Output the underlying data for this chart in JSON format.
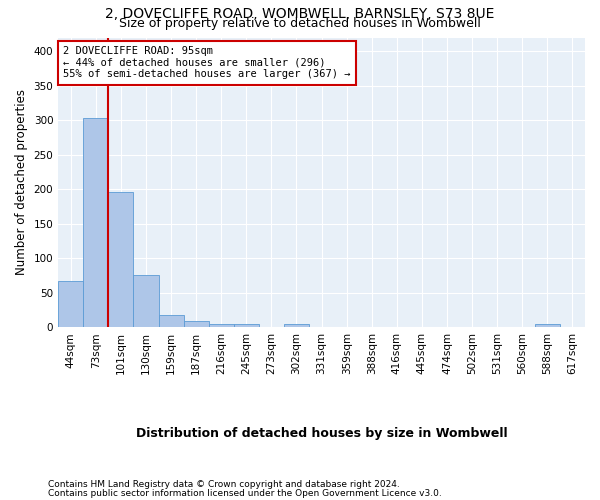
{
  "title": "2, DOVECLIFFE ROAD, WOMBWELL, BARNSLEY, S73 8UE",
  "subtitle": "Size of property relative to detached houses in Wombwell",
  "xlabel": "Distribution of detached houses by size in Wombwell",
  "ylabel": "Number of detached properties",
  "footer_line1": "Contains HM Land Registry data © Crown copyright and database right 2024.",
  "footer_line2": "Contains public sector information licensed under the Open Government Licence v3.0.",
  "bin_labels": [
    "44sqm",
    "73sqm",
    "101sqm",
    "130sqm",
    "159sqm",
    "187sqm",
    "216sqm",
    "245sqm",
    "273sqm",
    "302sqm",
    "331sqm",
    "359sqm",
    "388sqm",
    "416sqm",
    "445sqm",
    "474sqm",
    "502sqm",
    "531sqm",
    "560sqm",
    "588sqm",
    "617sqm"
  ],
  "bar_values": [
    67,
    303,
    196,
    75,
    18,
    9,
    5,
    5,
    0,
    5,
    0,
    0,
    0,
    0,
    0,
    0,
    0,
    0,
    0,
    4,
    0
  ],
  "bar_color": "#aec6e8",
  "bar_edge_color": "#5b9bd5",
  "background_color": "#e8f0f8",
  "grid_color": "#d0d8e8",
  "red_line_xindex": 1.5,
  "annotation_title": "2 DOVECLIFFE ROAD: 95sqm",
  "annotation_line1": "← 44% of detached houses are smaller (296)",
  "annotation_line2": "55% of semi-detached houses are larger (367) →",
  "annotation_box_color": "#ffffff",
  "annotation_border_color": "#cc0000",
  "red_line_color": "#cc0000",
  "ylim": [
    0,
    420
  ],
  "yticks": [
    0,
    50,
    100,
    150,
    200,
    250,
    300,
    350,
    400
  ],
  "title_fontsize": 10,
  "subtitle_fontsize": 9,
  "xlabel_fontsize": 9,
  "ylabel_fontsize": 8.5,
  "tick_fontsize": 7.5,
  "footer_fontsize": 6.5
}
